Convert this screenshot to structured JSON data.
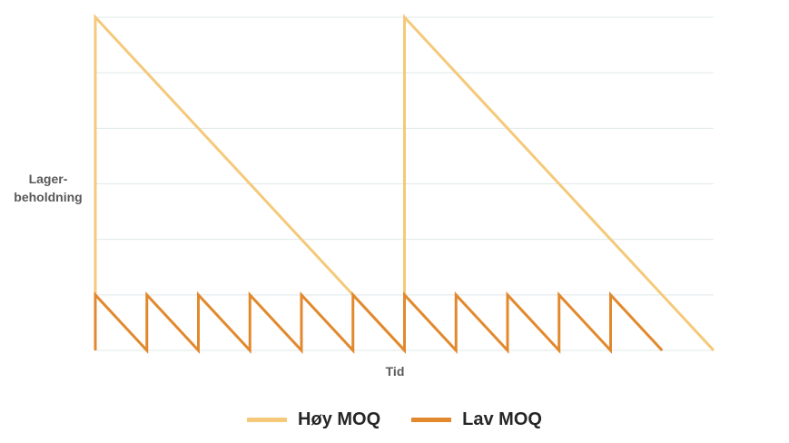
{
  "chart_data": {
    "type": "line",
    "title": "",
    "xlabel": "Tid",
    "ylabel": "Lager-beholdning",
    "ylabel_lines": [
      "Lager-",
      "beholdning"
    ],
    "xlim": [
      0,
      12
    ],
    "ylim": [
      0,
      6
    ],
    "grid": true,
    "legend_position": "bottom",
    "series": [
      {
        "name": "Høy MOQ",
        "color": "#F5C97A",
        "points": [
          [
            0,
            0
          ],
          [
            0,
            6
          ],
          [
            6,
            0
          ],
          [
            6,
            6
          ],
          [
            12,
            0
          ]
        ]
      },
      {
        "name": "Lav MOQ",
        "color": "#E2892E",
        "points": [
          [
            0,
            0
          ],
          [
            0,
            1
          ],
          [
            1,
            0
          ],
          [
            1,
            1
          ],
          [
            2,
            0
          ],
          [
            2,
            1
          ],
          [
            3,
            0
          ],
          [
            3,
            1
          ],
          [
            4,
            0
          ],
          [
            4,
            1
          ],
          [
            5,
            0
          ],
          [
            5,
            1
          ],
          [
            6,
            0
          ],
          [
            6,
            1
          ],
          [
            7,
            0
          ],
          [
            7,
            1
          ],
          [
            8,
            0
          ],
          [
            8,
            1
          ],
          [
            9,
            0
          ],
          [
            9,
            1
          ],
          [
            10,
            0
          ],
          [
            10,
            1
          ],
          [
            11,
            0
          ]
        ]
      }
    ]
  }
}
